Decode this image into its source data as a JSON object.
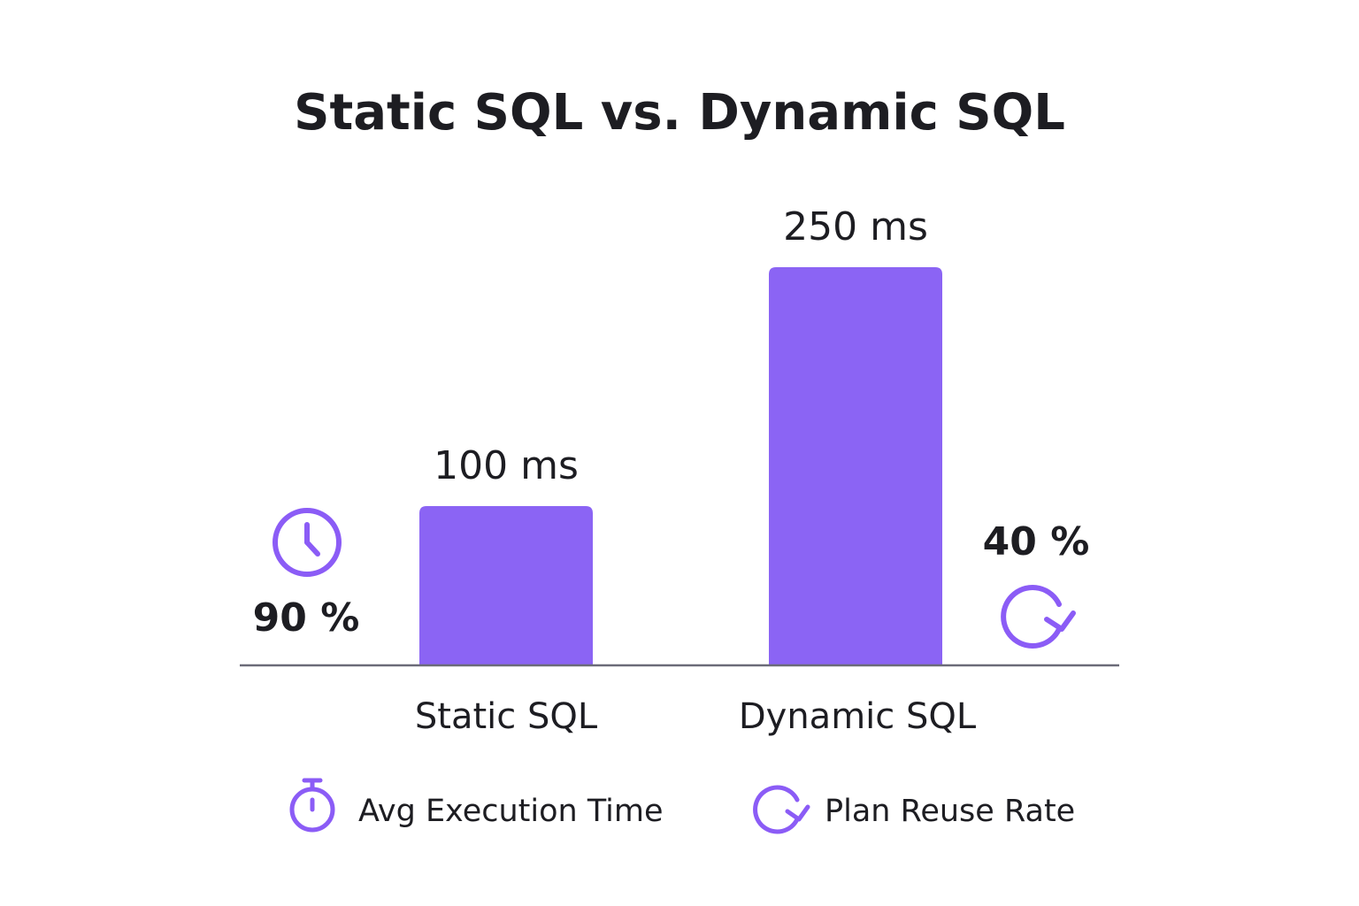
{
  "chart_data": {
    "type": "bar",
    "title": "Static SQL vs. Dynamic SQL",
    "xlabel": "",
    "ylabel": "",
    "categories": [
      "Static SQL",
      "Dynamic SQL"
    ],
    "series": [
      {
        "name": "Avg Execution Time",
        "values": [
          100,
          250
        ],
        "value_labels": [
          "100 ms",
          "250 ms"
        ]
      },
      {
        "name": "Plan Reuse Rate",
        "values": [
          90,
          40
        ],
        "value_labels": [
          "90 %",
          "40 %"
        ]
      }
    ],
    "grid": false,
    "legend_position": "bottom",
    "colors": {
      "bar": "#8b64f4",
      "icon": "#8b5cf6",
      "axis": "#6b6b78",
      "text": "#1d1d22"
    },
    "icons": {
      "static_marker": "clock-icon",
      "dynamic_marker": "refresh-icon",
      "legend_time": "stopwatch-icon",
      "legend_reuse": "refresh-icon"
    }
  }
}
